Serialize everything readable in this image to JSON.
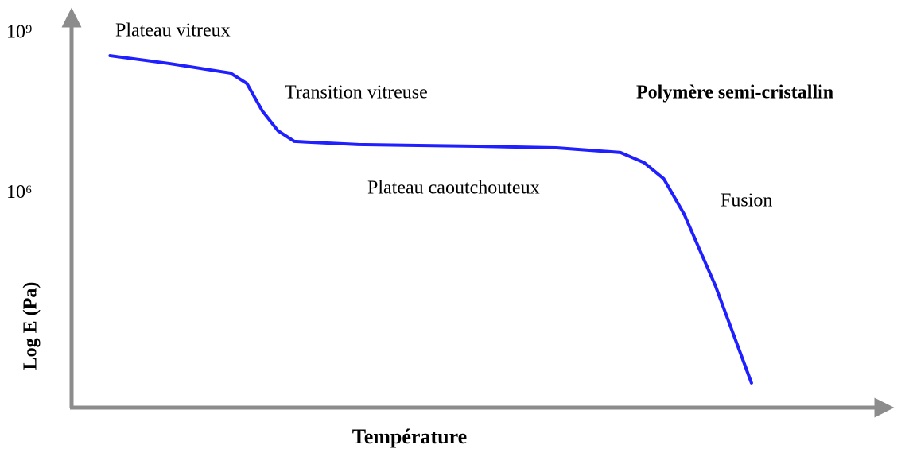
{
  "chart_data": {
    "type": "line",
    "title": "Polymère semi-cristallin",
    "xlabel": "Température",
    "ylabel": "Log E (Pa)",
    "log_y": true,
    "ylim": [
      100,
      2500000000
    ],
    "yticks": [
      {
        "value": 1000000000,
        "label": "10⁹"
      },
      {
        "value": 1000000,
        "label": "10⁶"
      }
    ],
    "xlim": [
      0,
      100
    ],
    "series": [
      {
        "color": "#1f1fff",
        "x": [
          4.7,
          12,
          19.4,
          21.4,
          23.3,
          25.2,
          27.2,
          35,
          49.5,
          59.2,
          67,
          69.9,
          72.3,
          74.8,
          78.6,
          83
        ],
        "values": [
          380000000,
          270000000,
          180000000,
          115000000,
          35000000,
          15000000,
          9500000,
          8300000,
          7700000,
          7200000,
          5900000,
          3800000,
          1900000,
          410000,
          19000,
          290
        ]
      }
    ],
    "annotations": [
      "Plateau vitreux",
      "Transition vitreuse",
      "Plateau caoutchouteux",
      "Fusion"
    ]
  }
}
